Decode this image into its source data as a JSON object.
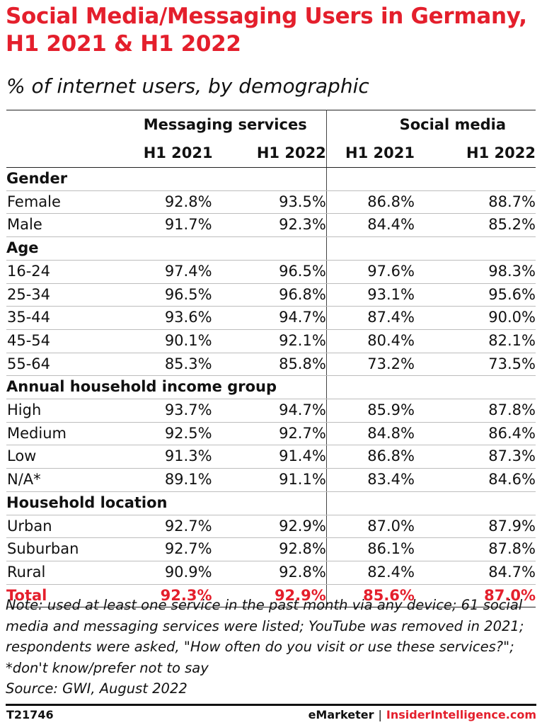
{
  "title": "Social Media/Messaging Users in Germany, H1 2021 & H1 2022",
  "subtitle": "% of internet users, by demographic",
  "chart_data": {
    "type": "table",
    "column_groups": [
      "Messaging services",
      "Social media"
    ],
    "columns": [
      "H1 2021",
      "H1 2022",
      "H1 2021",
      "H1 2022"
    ],
    "sections": [
      {
        "name": "Gender",
        "rows": [
          {
            "label": "Female",
            "values": [
              "92.8%",
              "93.5%",
              "86.8%",
              "88.7%"
            ]
          },
          {
            "label": "Male",
            "values": [
              "91.7%",
              "92.3%",
              "84.4%",
              "85.2%"
            ]
          }
        ]
      },
      {
        "name": "Age",
        "rows": [
          {
            "label": "16-24",
            "values": [
              "97.4%",
              "96.5%",
              "97.6%",
              "98.3%"
            ]
          },
          {
            "label": "25-34",
            "values": [
              "96.5%",
              "96.8%",
              "93.1%",
              "95.6%"
            ]
          },
          {
            "label": "35-44",
            "values": [
              "93.6%",
              "94.7%",
              "87.4%",
              "90.0%"
            ]
          },
          {
            "label": "45-54",
            "values": [
              "90.1%",
              "92.1%",
              "80.4%",
              "82.1%"
            ]
          },
          {
            "label": "55-64",
            "values": [
              "85.3%",
              "85.8%",
              "73.2%",
              "73.5%"
            ]
          }
        ]
      },
      {
        "name": "Annual household income group",
        "rows": [
          {
            "label": "High",
            "values": [
              "93.7%",
              "94.7%",
              "85.9%",
              "87.8%"
            ]
          },
          {
            "label": "Medium",
            "values": [
              "92.5%",
              "92.7%",
              "84.8%",
              "86.4%"
            ]
          },
          {
            "label": "Low",
            "values": [
              "91.3%",
              "91.4%",
              "86.8%",
              "87.3%"
            ]
          },
          {
            "label": "N/A*",
            "values": [
              "89.1%",
              "91.1%",
              "83.4%",
              "84.6%"
            ]
          }
        ]
      },
      {
        "name": "Household location",
        "rows": [
          {
            "label": "Urban",
            "values": [
              "92.7%",
              "92.9%",
              "87.0%",
              "87.9%"
            ]
          },
          {
            "label": "Suburban",
            "values": [
              "92.7%",
              "92.8%",
              "86.1%",
              "87.8%"
            ]
          },
          {
            "label": "Rural",
            "values": [
              "90.9%",
              "92.8%",
              "82.4%",
              "84.7%"
            ]
          }
        ]
      }
    ],
    "total": {
      "label": "Total",
      "values": [
        "92.3%",
        "92.9%",
        "85.6%",
        "87.0%"
      ]
    }
  },
  "note": "Note: used at least one service in the past month via any device; 61 social media and messaging services were listed; YouTube was removed in 2021; respondents were asked, \"How often do you visit or use these services?\"; *don't know/prefer not to say",
  "source": "Source: GWI, August 2022",
  "footer": {
    "chart_id": "T21746",
    "brand": "eMarketer",
    "separator": "|",
    "brand2": "InsiderIntelligence.com"
  },
  "colors": {
    "accent": "#e41f2c",
    "text": "#111111",
    "rule": "#222222"
  }
}
